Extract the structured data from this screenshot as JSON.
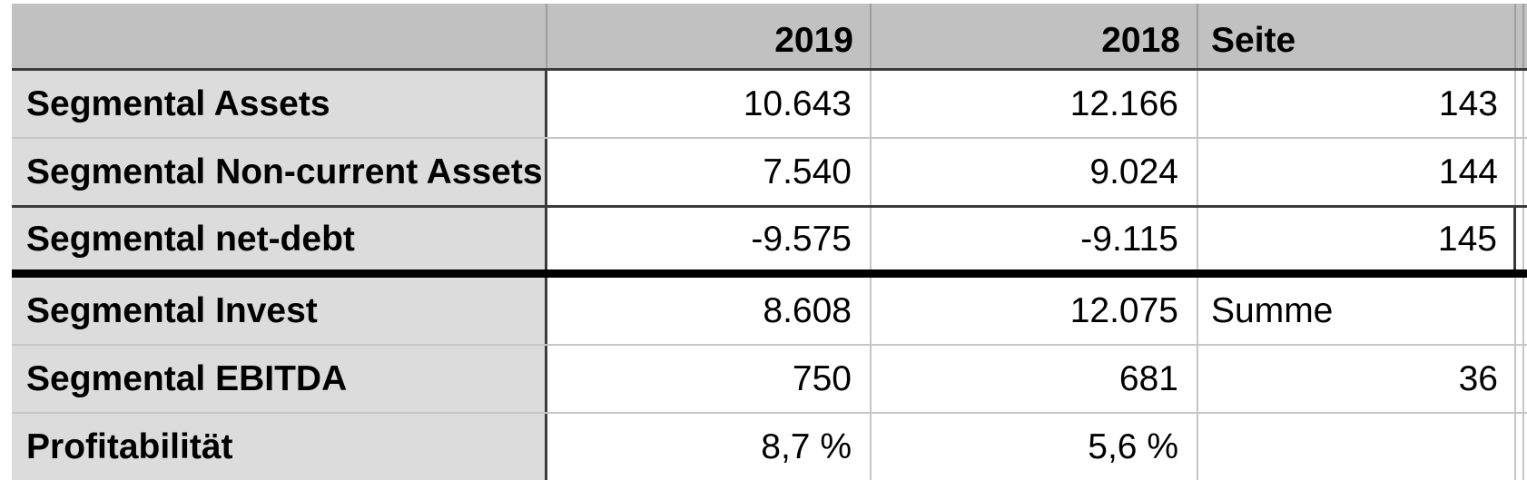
{
  "table": {
    "header": {
      "label": "",
      "col_2019": "2019",
      "col_2018": "2018",
      "page_col": "Seite"
    },
    "rows": [
      {
        "label": "Segmental Assets",
        "v2019": "10.643",
        "v2018": "12.166",
        "page": "143"
      },
      {
        "label": "Segmental Non-current Assets",
        "v2019": "7.540",
        "v2018": "9.024",
        "page": "144"
      },
      {
        "label": "Segmental net-debt",
        "v2019": "-9.575",
        "v2018": "-9.115",
        "page": "145"
      },
      {
        "label": "Segmental Invest",
        "v2019": "8.608",
        "v2018": "12.075",
        "page": "Summe"
      },
      {
        "label": "Segmental EBITDA",
        "v2019": "750",
        "v2018": "681",
        "page": "36"
      },
      {
        "label": "Profitabilität",
        "v2019": "8,7 %",
        "v2018": "5,6 %",
        "page": ""
      }
    ],
    "colors": {
      "header_bg": "#c1c1c2",
      "label_column_bg": "#dcdcdd",
      "border_dark": "#3b3b3b",
      "border_light": "#c6c6c6",
      "header_divider": "#9d9da0",
      "separator_black": "#000000",
      "text": "#000000"
    }
  }
}
